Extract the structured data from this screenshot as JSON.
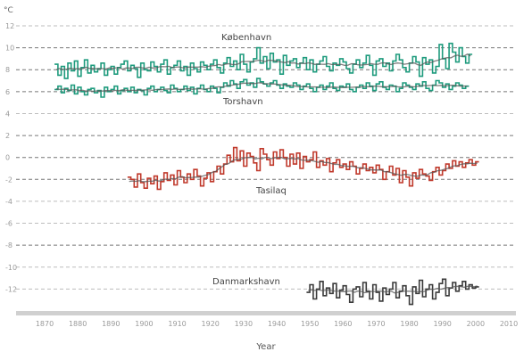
{
  "chart_data": {
    "type": "line",
    "title": "",
    "xlabel": "Year",
    "ylabel": "°C",
    "xlim": [
      1870,
      2010
    ],
    "ylim": [
      -14,
      12
    ],
    "x_ticks": [
      1870,
      1880,
      1890,
      1900,
      1910,
      1920,
      1930,
      1940,
      1950,
      1960,
      1970,
      1980,
      1990,
      2000,
      2010
    ],
    "y_ticks": [
      12,
      10,
      8,
      6,
      4,
      2,
      0,
      -2,
      -4,
      -6,
      -8,
      -10,
      -12
    ],
    "y_tick_labels": [
      "12",
      "10",
      "8",
      "6",
      "4",
      "2",
      "0",
      "-2",
      "-4",
      "-6",
      "-8",
      "-10",
      "-12"
    ],
    "dark_gridlines": [
      10,
      8,
      6,
      2,
      0,
      -2,
      -8
    ],
    "light_gridlines": [
      12,
      4,
      -4,
      -6,
      -10,
      -12
    ],
    "grid": true,
    "colors": {
      "green": "#1e9b7d",
      "red": "#c0392b",
      "dark": "#3a3a3a",
      "trend": "#555555",
      "faded": "#a8a8a8"
    },
    "series": [
      {
        "name": "København",
        "color": "#1e9b7d",
        "x_start": 1873,
        "values": [
          8.5,
          7.5,
          8.3,
          7.2,
          8.6,
          7.9,
          8.8,
          7.4,
          8.2,
          8.9,
          7.7,
          8.4,
          7.8,
          8.1,
          8.6,
          7.5,
          8.0,
          8.3,
          7.6,
          8.2,
          8.5,
          8.8,
          7.9,
          8.4,
          8.1,
          7.3,
          8.6,
          8.0,
          7.9,
          8.7,
          8.3,
          7.8,
          8.5,
          8.9,
          7.6,
          8.2,
          8.4,
          8.8,
          7.9,
          8.3,
          7.5,
          8.6,
          8.1,
          7.8,
          8.7,
          8.4,
          8.0,
          8.5,
          8.9,
          8.2,
          7.7,
          8.6,
          9.1,
          8.3,
          8.8,
          8.0,
          9.4,
          8.5,
          7.8,
          8.7,
          9.0,
          10.0,
          8.6,
          9.2,
          8.1,
          9.5,
          8.7,
          8.9,
          7.6,
          9.3,
          8.4,
          8.8,
          9.0,
          8.2,
          8.6,
          9.1,
          8.0,
          8.9,
          7.8,
          8.5,
          8.8,
          9.2,
          8.3,
          7.9,
          8.6,
          8.4,
          9.0,
          8.7,
          8.1,
          7.7,
          8.5,
          8.9,
          8.2,
          8.6,
          9.3,
          8.4,
          7.5,
          8.8,
          9.0,
          8.3,
          8.6,
          7.9,
          8.8,
          9.4,
          8.9,
          8.2,
          7.8,
          8.6,
          9.2,
          8.7,
          7.4,
          9.1,
          8.5,
          8.9,
          7.7,
          8.3,
          10.3,
          9.0,
          8.1,
          10.4,
          9.6,
          8.7,
          10.0,
          9.2,
          8.6,
          9.4
        ]
      },
      {
        "name": "Torshavn",
        "color": "#1e9b7d",
        "x_start": 1873,
        "values": [
          6.2,
          6.5,
          5.9,
          6.3,
          6.1,
          6.6,
          5.8,
          6.4,
          6.0,
          5.7,
          6.2,
          6.3,
          5.9,
          6.1,
          5.5,
          6.4,
          6.0,
          6.2,
          6.5,
          5.8,
          6.1,
          6.3,
          6.0,
          6.4,
          5.9,
          6.2,
          6.1,
          5.7,
          6.3,
          6.5,
          6.0,
          6.2,
          6.4,
          6.1,
          5.9,
          6.6,
          6.3,
          6.0,
          6.2,
          6.5,
          6.1,
          6.4,
          5.8,
          6.3,
          6.6,
          6.2,
          6.0,
          6.5,
          6.3,
          5.9,
          6.4,
          6.8,
          6.5,
          7.0,
          6.7,
          6.3,
          6.9,
          7.1,
          6.6,
          6.8,
          6.4,
          7.2,
          6.9,
          6.7,
          6.5,
          6.8,
          7.0,
          6.6,
          6.3,
          6.7,
          6.5,
          6.4,
          6.8,
          6.6,
          6.2,
          6.5,
          6.7,
          6.3,
          6.0,
          6.4,
          6.6,
          6.2,
          6.5,
          6.8,
          6.3,
          6.1,
          6.5,
          6.4,
          6.7,
          6.2,
          6.0,
          6.4,
          6.6,
          6.3,
          6.8,
          6.5,
          6.1,
          6.7,
          6.9,
          6.4,
          6.2,
          6.6,
          6.5,
          6.0,
          6.3,
          6.8,
          6.6,
          6.4,
          6.2,
          6.7,
          6.5,
          6.9,
          6.3,
          6.1,
          6.6,
          7.0,
          6.8,
          6.4,
          6.7,
          6.2,
          6.5,
          6.8,
          6.6,
          6.3,
          6.5
        ]
      },
      {
        "name": "Tasilaq",
        "color": "#c0392b",
        "x_start": 1895,
        "values": [
          -1.8,
          -2.0,
          -2.7,
          -1.5,
          -2.3,
          -2.8,
          -1.9,
          -2.4,
          -1.7,
          -2.9,
          -2.2,
          -1.4,
          -2.1,
          -1.6,
          -2.5,
          -1.2,
          -1.8,
          -2.3,
          -1.5,
          -2.0,
          -1.1,
          -1.7,
          -2.6,
          -1.9,
          -1.4,
          -2.2,
          -1.3,
          -0.8,
          -1.5,
          -0.6,
          0.2,
          -0.4,
          0.9,
          -0.3,
          0.6,
          -0.8,
          0.4,
          0.1,
          -0.5,
          -1.2,
          0.8,
          0.3,
          -0.2,
          -0.7,
          0.5,
          -0.1,
          0.7,
          0.0,
          -0.8,
          0.3,
          -0.6,
          0.4,
          -1.0,
          0.1,
          -0.4,
          -0.2,
          0.5,
          -0.9,
          -0.3,
          -0.7,
          -0.1,
          -1.3,
          -0.5,
          -0.2,
          -0.9,
          -0.6,
          -1.1,
          -0.4,
          -0.8,
          -1.5,
          -1.0,
          -0.6,
          -1.2,
          -0.9,
          -1.4,
          -0.7,
          -1.1,
          -2.0,
          -1.3,
          -0.8,
          -1.6,
          -1.0,
          -2.3,
          -1.2,
          -1.8,
          -2.6,
          -1.4,
          -1.9,
          -1.1,
          -1.5,
          -1.7,
          -2.1,
          -1.3,
          -0.9,
          -1.6,
          -1.2,
          -0.6,
          -1.0,
          -0.3,
          -0.8,
          -0.4,
          -0.9,
          -0.5,
          -0.2,
          -0.7,
          -0.4
        ]
      },
      {
        "name": "Danmarkshavn",
        "color": "#3a3a3a",
        "x_start": 1949,
        "values": [
          -12.3,
          -11.6,
          -12.9,
          -12.0,
          -11.3,
          -12.6,
          -11.9,
          -12.4,
          -11.5,
          -12.8,
          -12.1,
          -11.7,
          -12.5,
          -13.2,
          -12.0,
          -11.8,
          -12.7,
          -11.4,
          -12.2,
          -12.9,
          -11.6,
          -12.3,
          -13.1,
          -11.9,
          -12.5,
          -12.0,
          -11.4,
          -12.8,
          -12.2,
          -11.7,
          -12.6,
          -13.4,
          -11.8,
          -12.4,
          -11.2,
          -12.7,
          -12.0,
          -11.6,
          -12.9,
          -12.3,
          -11.5,
          -11.1,
          -12.6,
          -11.9,
          -11.4,
          -12.2,
          -11.7,
          -11.3,
          -12.0,
          -11.6,
          -11.9,
          -11.8
        ]
      }
    ]
  },
  "labels": {
    "unit": "°C",
    "xlabel": "Year",
    "kobenhavn": "København",
    "torshavn": "Torshavn",
    "tasilaq": "Tasilaq",
    "danmarkshavn": "Danmarkshavn"
  }
}
